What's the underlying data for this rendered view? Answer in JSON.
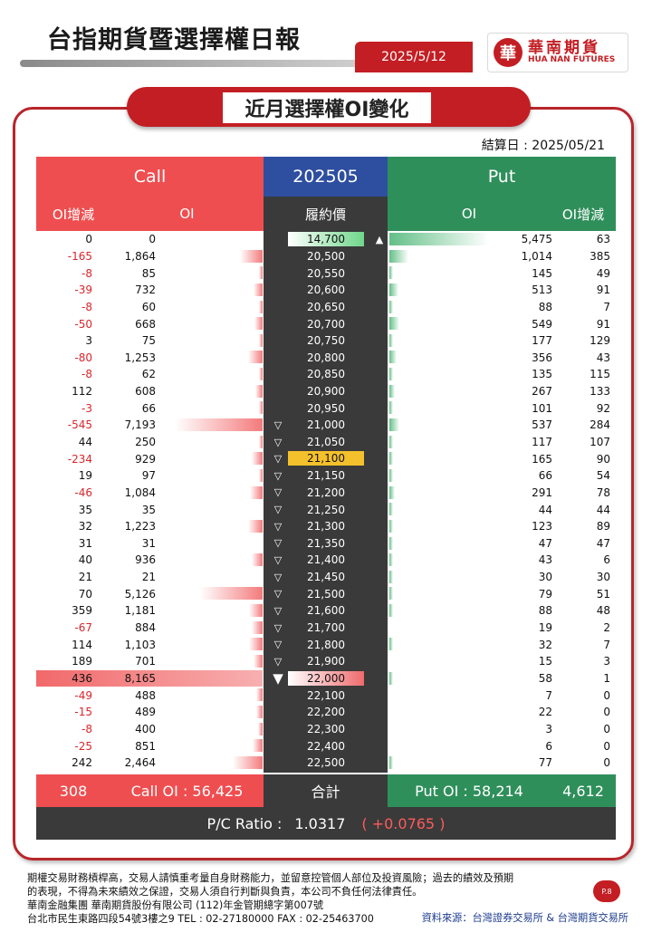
{
  "header": {
    "title": "台指期貨暨選擇權日報",
    "date": "2025/5/12",
    "logo_cn": "華南期貨",
    "logo_en": "HUA NAN FUTURES",
    "logo_mark": "華"
  },
  "section": {
    "title": "近月選擇權OI變化",
    "settle": "結算日 : 2025/05/21"
  },
  "table": {
    "call_label": "Call",
    "month_label": "202505",
    "put_label": "Put",
    "col_call_chg": "OI增減",
    "col_call_oi": "OI",
    "col_strike": "履約價",
    "col_put_oi": "OI",
    "col_put_chg": "OI增減",
    "rows": [
      {
        "c_chg": "0",
        "c_oi": "0",
        "strike": "14,700",
        "p_oi": "5,475",
        "p_chg": "63",
        "c_bar": 0,
        "p_bar": 1.0,
        "mark": "up",
        "hl": "green"
      },
      {
        "c_chg": "-165",
        "c_oi": "1,864",
        "strike": "20,500",
        "p_oi": "1,014",
        "p_chg": "385",
        "c_bar": 0.23,
        "p_bar": 0.19,
        "mark": "",
        "hl": ""
      },
      {
        "c_chg": "-8",
        "c_oi": "85",
        "strike": "20,550",
        "p_oi": "145",
        "p_chg": "49",
        "c_bar": 0.02,
        "p_bar": 0.03,
        "mark": "",
        "hl": ""
      },
      {
        "c_chg": "-39",
        "c_oi": "732",
        "strike": "20,600",
        "p_oi": "513",
        "p_chg": "91",
        "c_bar": 0.09,
        "p_bar": 0.09,
        "mark": "",
        "hl": ""
      },
      {
        "c_chg": "-8",
        "c_oi": "60",
        "strike": "20,650",
        "p_oi": "88",
        "p_chg": "7",
        "c_bar": 0.01,
        "p_bar": 0.02,
        "mark": "",
        "hl": ""
      },
      {
        "c_chg": "-50",
        "c_oi": "668",
        "strike": "20,700",
        "p_oi": "549",
        "p_chg": "91",
        "c_bar": 0.08,
        "p_bar": 0.1,
        "mark": "",
        "hl": ""
      },
      {
        "c_chg": "3",
        "c_oi": "75",
        "strike": "20,750",
        "p_oi": "177",
        "p_chg": "129",
        "c_bar": 0.01,
        "p_bar": 0.03,
        "mark": "",
        "hl": ""
      },
      {
        "c_chg": "-80",
        "c_oi": "1,253",
        "strike": "20,800",
        "p_oi": "356",
        "p_chg": "43",
        "c_bar": 0.15,
        "p_bar": 0.07,
        "mark": "",
        "hl": ""
      },
      {
        "c_chg": "-8",
        "c_oi": "62",
        "strike": "20,850",
        "p_oi": "135",
        "p_chg": "115",
        "c_bar": 0.01,
        "p_bar": 0.02,
        "mark": "",
        "hl": ""
      },
      {
        "c_chg": "112",
        "c_oi": "608",
        "strike": "20,900",
        "p_oi": "267",
        "p_chg": "133",
        "c_bar": 0.07,
        "p_bar": 0.05,
        "mark": "",
        "hl": ""
      },
      {
        "c_chg": "-3",
        "c_oi": "66",
        "strike": "20,950",
        "p_oi": "101",
        "p_chg": "92",
        "c_bar": 0.01,
        "p_bar": 0.02,
        "mark": "",
        "hl": ""
      },
      {
        "c_chg": "-545",
        "c_oi": "7,193",
        "strike": "21,000",
        "p_oi": "537",
        "p_chg": "284",
        "c_bar": 0.88,
        "p_bar": 0.1,
        "mark": "down",
        "hl": ""
      },
      {
        "c_chg": "44",
        "c_oi": "250",
        "strike": "21,050",
        "p_oi": "117",
        "p_chg": "107",
        "c_bar": 0.03,
        "p_bar": 0.02,
        "mark": "down",
        "hl": ""
      },
      {
        "c_chg": "-234",
        "c_oi": "929",
        "strike": "21,100",
        "p_oi": "165",
        "p_chg": "90",
        "c_bar": 0.11,
        "p_bar": 0.03,
        "mark": "down",
        "hl": "gold"
      },
      {
        "c_chg": "19",
        "c_oi": "97",
        "strike": "21,150",
        "p_oi": "66",
        "p_chg": "54",
        "c_bar": 0.01,
        "p_bar": 0.01,
        "mark": "down",
        "hl": ""
      },
      {
        "c_chg": "-46",
        "c_oi": "1,084",
        "strike": "21,200",
        "p_oi": "291",
        "p_chg": "78",
        "c_bar": 0.13,
        "p_bar": 0.05,
        "mark": "down",
        "hl": ""
      },
      {
        "c_chg": "35",
        "c_oi": "35",
        "strike": "21,250",
        "p_oi": "44",
        "p_chg": "44",
        "c_bar": 0.0,
        "p_bar": 0.01,
        "mark": "down",
        "hl": ""
      },
      {
        "c_chg": "32",
        "c_oi": "1,223",
        "strike": "21,300",
        "p_oi": "123",
        "p_chg": "89",
        "c_bar": 0.15,
        "p_bar": 0.02,
        "mark": "down",
        "hl": ""
      },
      {
        "c_chg": "31",
        "c_oi": "31",
        "strike": "21,350",
        "p_oi": "47",
        "p_chg": "47",
        "c_bar": 0.0,
        "p_bar": 0.01,
        "mark": "down",
        "hl": ""
      },
      {
        "c_chg": "40",
        "c_oi": "936",
        "strike": "21,400",
        "p_oi": "43",
        "p_chg": "6",
        "c_bar": 0.11,
        "p_bar": 0.01,
        "mark": "down",
        "hl": ""
      },
      {
        "c_chg": "21",
        "c_oi": "21",
        "strike": "21,450",
        "p_oi": "30",
        "p_chg": "30",
        "c_bar": 0.0,
        "p_bar": 0.01,
        "mark": "down",
        "hl": ""
      },
      {
        "c_chg": "70",
        "c_oi": "5,126",
        "strike": "21,500",
        "p_oi": "79",
        "p_chg": "51",
        "c_bar": 0.63,
        "p_bar": 0.01,
        "mark": "down",
        "hl": ""
      },
      {
        "c_chg": "359",
        "c_oi": "1,181",
        "strike": "21,600",
        "p_oi": "88",
        "p_chg": "48",
        "c_bar": 0.14,
        "p_bar": 0.02,
        "mark": "down",
        "hl": ""
      },
      {
        "c_chg": "-67",
        "c_oi": "884",
        "strike": "21,700",
        "p_oi": "19",
        "p_chg": "2",
        "c_bar": 0.11,
        "p_bar": 0.0,
        "mark": "down",
        "hl": ""
      },
      {
        "c_chg": "114",
        "c_oi": "1,103",
        "strike": "21,800",
        "p_oi": "32",
        "p_chg": "7",
        "c_bar": 0.14,
        "p_bar": 0.01,
        "mark": "down",
        "hl": ""
      },
      {
        "c_chg": "189",
        "c_oi": "701",
        "strike": "21,900",
        "p_oi": "15",
        "p_chg": "3",
        "c_bar": 0.09,
        "p_bar": 0.0,
        "mark": "down",
        "hl": ""
      },
      {
        "c_chg": "436",
        "c_oi": "8,165",
        "strike": "22,000",
        "p_oi": "58",
        "p_chg": "1",
        "c_bar": 1.0,
        "p_bar": 0.01,
        "mark": "bigdown",
        "hl": "red"
      },
      {
        "c_chg": "-49",
        "c_oi": "488",
        "strike": "22,100",
        "p_oi": "7",
        "p_chg": "0",
        "c_bar": 0.06,
        "p_bar": 0.0,
        "mark": "",
        "hl": ""
      },
      {
        "c_chg": "-15",
        "c_oi": "489",
        "strike": "22,200",
        "p_oi": "22",
        "p_chg": "0",
        "c_bar": 0.06,
        "p_bar": 0.0,
        "mark": "",
        "hl": ""
      },
      {
        "c_chg": "-8",
        "c_oi": "400",
        "strike": "22,300",
        "p_oi": "3",
        "p_chg": "0",
        "c_bar": 0.05,
        "p_bar": 0.0,
        "mark": "",
        "hl": ""
      },
      {
        "c_chg": "-25",
        "c_oi": "851",
        "strike": "22,400",
        "p_oi": "6",
        "p_chg": "0",
        "c_bar": 0.1,
        "p_bar": 0.0,
        "mark": "",
        "hl": ""
      },
      {
        "c_chg": "242",
        "c_oi": "2,464",
        "strike": "22,500",
        "p_oi": "77",
        "p_chg": "0",
        "c_bar": 0.3,
        "p_bar": 0.01,
        "mark": "",
        "hl": ""
      }
    ]
  },
  "totals": {
    "call_chg": "308",
    "call_oi": "Call OI : 56,425",
    "label": "合計",
    "put_oi": "Put OI : 58,214",
    "put_chg": "4,612",
    "pc_label": "P/C Ratio :",
    "pc_value": "1.0317",
    "pc_change": "( +0.0765 )"
  },
  "footer": {
    "line1": "期權交易財務槓桿高，交易人請慎重考量自身財務能力，並留意控管個人部位及投資風險；過去的績效及預期",
    "line2": "的表現，不得為未來績效之保證，交易人須自行判斷與負責，本公司不負任何法律責任。",
    "line3": "華南金融集團 華南期貨股份有限公司 (112)年金管期總字第007號",
    "line4": "台北市民生東路四段54號3樓之9  TEL : 02-27180000  FAX : 02-25463700",
    "source": "資料來源：台灣證券交易所 & 台灣期貨交易所",
    "page": "P.8"
  },
  "colors": {
    "brand_red": "#c31e23",
    "call_red": "#ef4e50",
    "put_green": "#2f8f5b",
    "month_blue": "#2e4fa0",
    "dark": "#3a3a3a"
  }
}
